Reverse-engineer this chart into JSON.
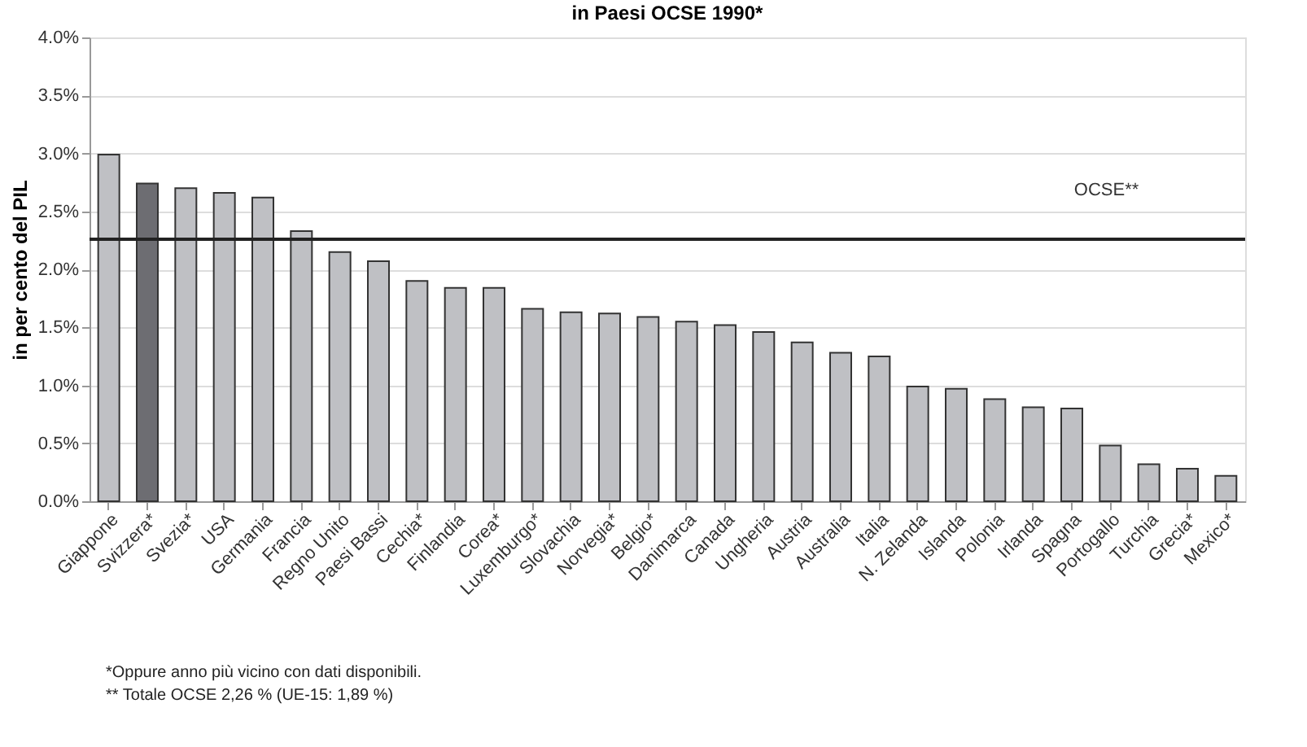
{
  "chart_data": {
    "type": "bar",
    "title": "in Paesi OCSE 1990*",
    "ylabel": "in per cento del PIL",
    "categories": [
      "Giappone",
      "Svizzera*",
      "Svezia*",
      "USA",
      "Germania",
      "Francia",
      "Regno Unito",
      "Paesi Bassi",
      "Cechia*",
      "Finlandia",
      "Corea*",
      "Luxemburgo*",
      "Slovachia",
      "Norvegia*",
      "Belgio*",
      "Danimarca",
      "Canada",
      "Ungheria",
      "Austria",
      "Australia",
      "Italia",
      "N. Zelanda",
      "Islanda",
      "Polonia",
      "Irlanda",
      "Spagna",
      "Portogallo",
      "Turchia",
      "Grecia*",
      "Mexico*"
    ],
    "values": [
      2.99,
      2.74,
      2.7,
      2.66,
      2.62,
      2.33,
      2.15,
      2.07,
      1.9,
      1.84,
      1.84,
      1.66,
      1.63,
      1.62,
      1.59,
      1.55,
      1.52,
      1.46,
      1.37,
      1.28,
      1.25,
      0.99,
      0.97,
      0.88,
      0.81,
      0.8,
      0.48,
      0.32,
      0.28,
      0.22
    ],
    "colors": [
      "#bfc0c4",
      "#6d6d72",
      "#bfc0c4",
      "#bfc0c4",
      "#bfc0c4",
      "#bfc0c4",
      "#bfc0c4",
      "#bfc0c4",
      "#bfc0c4",
      "#bfc0c4",
      "#bfc0c4",
      "#bfc0c4",
      "#bfc0c4",
      "#bfc0c4",
      "#bfc0c4",
      "#bfc0c4",
      "#bfc0c4",
      "#bfc0c4",
      "#bfc0c4",
      "#bfc0c4",
      "#bfc0c4",
      "#bfc0c4",
      "#bfc0c4",
      "#bfc0c4",
      "#bfc0c4",
      "#bfc0c4",
      "#bfc0c4",
      "#bfc0c4",
      "#bfc0c4",
      "#bfc0c4"
    ],
    "ylim": [
      0,
      4
    ],
    "yticks": [
      {
        "value": 0,
        "label": "0.0%"
      },
      {
        "value": 0.5,
        "label": "0.5%"
      },
      {
        "value": 1,
        "label": "1.0%"
      },
      {
        "value": 1.5,
        "label": "1.5%"
      },
      {
        "value": 2,
        "label": "2.0%"
      },
      {
        "value": 2.5,
        "label": "2.5%"
      },
      {
        "value": 3,
        "label": "3.0%"
      },
      {
        "value": 3.5,
        "label": "3.5%"
      },
      {
        "value": 4,
        "label": "4.0%"
      }
    ],
    "ref_lines": [
      {
        "axis": "y",
        "value": 2.26,
        "label": "OCSE**",
        "color": "#222222"
      }
    ],
    "annotations": [
      "*Oppure anno più vicino con dati disponibili.",
      "** Totale OCSE 2,26 %  (UE-15: 1,89 %)"
    ],
    "grid": "y"
  }
}
